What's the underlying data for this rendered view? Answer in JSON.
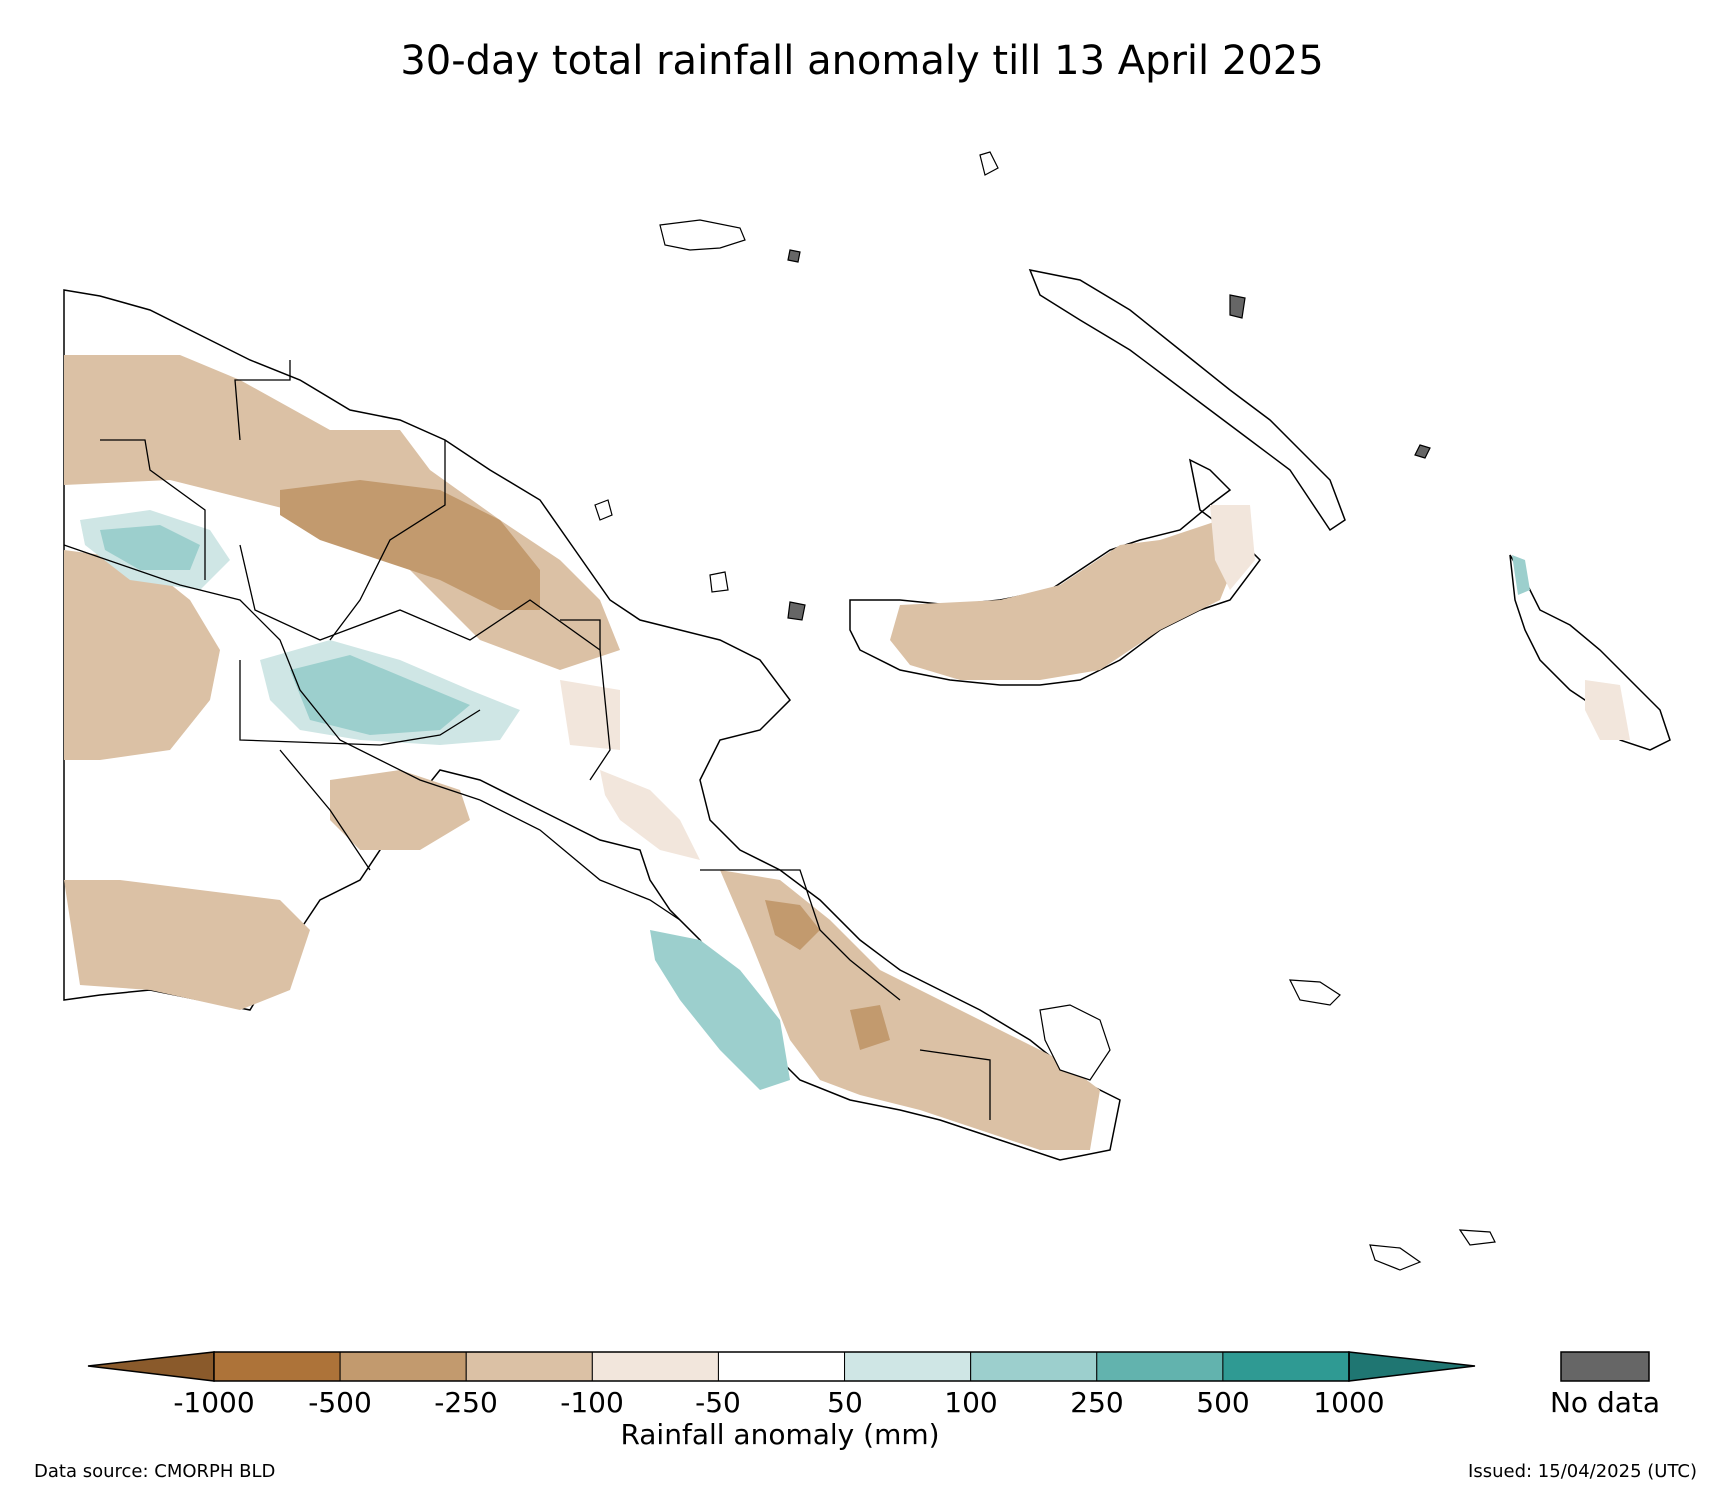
{
  "title": "30-day total rainfall anomaly till 13 April 2025",
  "colorbar": {
    "label": "Rainfall anomaly (mm)",
    "ticks": [
      "-1000",
      "-500",
      "-250",
      "-100",
      "-50",
      "50",
      "100",
      "250",
      "500",
      "1000"
    ],
    "colors": [
      "#8a5a2b",
      "#ad7339",
      "#c29a6e",
      "#dbc1a5",
      "#f2e6dc",
      "#ffffff",
      "#cfe6e5",
      "#9ccfcd",
      "#62b3ae",
      "#2f9a93",
      "#1f7672"
    ],
    "nodata_label": "No data",
    "nodata_color": "#666666"
  },
  "footer": {
    "source": "Data source: CMORPH BLD",
    "issued": "Issued: 15/04/2025 (UTC)"
  }
}
